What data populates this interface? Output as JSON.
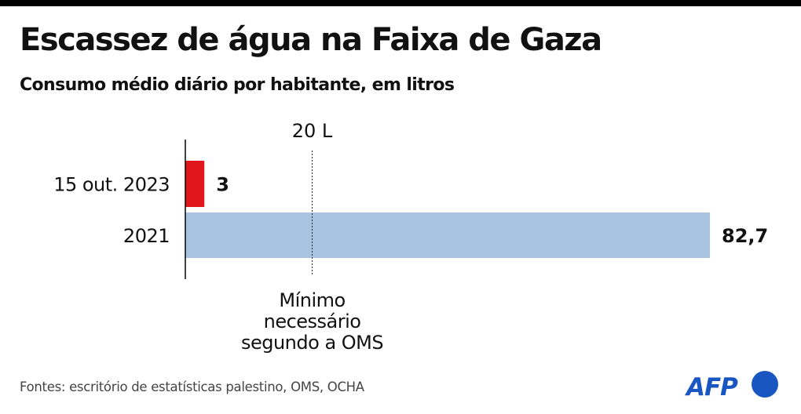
{
  "title": "Escassez de água na Faixa de Gaza",
  "subtitle": "Consumo médio diário por habitante, em litros",
  "source": "Fontes: escritório de estatísticas palestino, OMS, OCHA",
  "logo": {
    "text": "AFP",
    "icon": "afp-logo-icon",
    "color": "#1a56c2"
  },
  "colors": {
    "bar_2023": "#e1151c",
    "bar_2021": "#a8c4e0",
    "axis": "#000000"
  },
  "chart_data": {
    "type": "bar",
    "orientation": "horizontal",
    "title": "Escassez de água na Faixa de Gaza",
    "subtitle": "Consumo médio diário por habitante, em litros",
    "categories": [
      "15 out. 2023",
      "2021"
    ],
    "values": [
      3,
      82.7
    ],
    "value_labels": [
      "3",
      "82,7"
    ],
    "xlim": [
      0,
      82.7
    ],
    "grid": false,
    "reference_line": {
      "value": 20,
      "label": "20 L",
      "annotation": [
        "Mínimo",
        "necessário",
        "segundo a OMS"
      ]
    }
  }
}
